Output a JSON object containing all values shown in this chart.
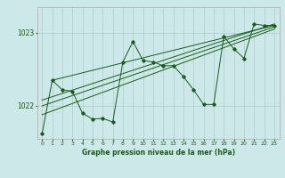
{
  "background_color": "#cce8e8",
  "grid_color": "#aacccc",
  "line_color": "#1a5c1a",
  "title": "Graphe pression niveau de la mer (hPa)",
  "xlim": [
    -0.5,
    23.5
  ],
  "ylim": [
    1021.55,
    1023.35
  ],
  "yticks": [
    1022,
    1023
  ],
  "xticks": [
    0,
    1,
    2,
    3,
    4,
    5,
    6,
    7,
    8,
    9,
    10,
    11,
    12,
    13,
    14,
    15,
    16,
    17,
    18,
    19,
    20,
    21,
    22,
    23
  ],
  "main_line": [
    [
      0,
      1021.62
    ],
    [
      1,
      1022.35
    ],
    [
      2,
      1022.22
    ],
    [
      3,
      1022.2
    ],
    [
      4,
      1021.9
    ],
    [
      5,
      1021.82
    ],
    [
      6,
      1021.83
    ],
    [
      7,
      1021.78
    ],
    [
      8,
      1022.6
    ],
    [
      9,
      1022.88
    ],
    [
      10,
      1022.62
    ],
    [
      11,
      1022.6
    ],
    [
      12,
      1022.55
    ],
    [
      13,
      1022.55
    ],
    [
      14,
      1022.4
    ],
    [
      15,
      1022.22
    ],
    [
      16,
      1022.02
    ],
    [
      17,
      1022.02
    ],
    [
      18,
      1022.95
    ],
    [
      19,
      1022.78
    ],
    [
      20,
      1022.65
    ],
    [
      21,
      1023.12
    ],
    [
      22,
      1023.1
    ],
    [
      23,
      1023.1
    ]
  ],
  "trend_lines": [
    [
      [
        0,
        1021.88
      ],
      [
        23,
        1023.05
      ]
    ],
    [
      [
        0,
        1022.0
      ],
      [
        23,
        1023.08
      ]
    ],
    [
      [
        0,
        1022.08
      ],
      [
        23,
        1023.12
      ]
    ],
    [
      [
        1,
        1022.35
      ],
      [
        23,
        1023.1
      ]
    ]
  ]
}
